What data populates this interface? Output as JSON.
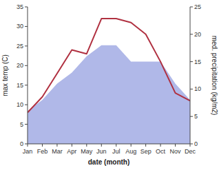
{
  "chart_data": {
    "type": "line",
    "xlabel": "date (month)",
    "ylabel": "max temp (C)",
    "y2label": "med. precipitation (kg/m2)",
    "categories": [
      "Jan",
      "Feb",
      "Mar",
      "Apr",
      "May",
      "Jun",
      "Jul",
      "Aug",
      "Sep",
      "Oct",
      "Nov",
      "Dec"
    ],
    "series": [
      {
        "type": "area",
        "axis": "y2",
        "color": "#b0b8e8",
        "values": [
          6,
          8,
          11,
          13,
          16,
          18,
          18,
          15,
          15,
          15,
          11,
          8
        ]
      },
      {
        "type": "line",
        "color": "#b03040",
        "values": [
          8,
          12,
          18,
          24,
          23,
          32,
          32,
          31,
          28,
          21,
          13,
          11
        ]
      }
    ],
    "ylim": [
      0,
      35
    ],
    "yticks": [
      0,
      5,
      10,
      15,
      20,
      25,
      30,
      35
    ],
    "y2lim": [
      0,
      25
    ],
    "y2ticks": [
      0,
      5,
      10,
      15,
      20,
      25
    ],
    "grid": false
  }
}
